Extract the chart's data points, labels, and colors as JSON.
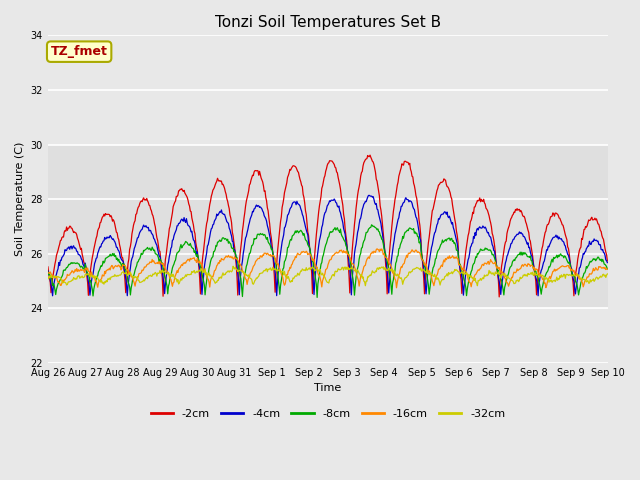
{
  "title": "Tonzi Soil Temperatures Set B",
  "xlabel": "Time",
  "ylabel": "Soil Temperature (C)",
  "ylim": [
    22,
    34
  ],
  "xlim": [
    0,
    15
  ],
  "annotation": "TZ_fmet",
  "annotation_color": "#aa0000",
  "annotation_bg": "#ffffcc",
  "annotation_border": "#aaaa00",
  "fig_bg": "#e8e8e8",
  "plot_bg": "#e8e8e8",
  "grid_color": "#ffffff",
  "series": [
    {
      "label": "-2cm",
      "color": "#dd0000",
      "amp": 3.5,
      "phase_hr": 14,
      "base": 24.5,
      "amp_scale": [
        0.7,
        0.85,
        1.0,
        1.1,
        1.2,
        1.3,
        1.35,
        1.4,
        1.45,
        1.4,
        1.2,
        1.0,
        0.9,
        0.85,
        0.8
      ]
    },
    {
      "label": "-4cm",
      "color": "#0000cc",
      "amp": 2.5,
      "phase_hr": 15,
      "base": 24.5,
      "amp_scale": [
        0.7,
        0.85,
        1.0,
        1.1,
        1.2,
        1.3,
        1.35,
        1.4,
        1.45,
        1.4,
        1.2,
        1.0,
        0.9,
        0.85,
        0.8
      ]
    },
    {
      "label": "-8cm",
      "color": "#00aa00",
      "amp": 1.8,
      "phase_hr": 17,
      "base": 24.5,
      "amp_scale": [
        0.65,
        0.8,
        0.95,
        1.05,
        1.15,
        1.25,
        1.3,
        1.35,
        1.4,
        1.35,
        1.15,
        0.95,
        0.85,
        0.8,
        0.75
      ]
    },
    {
      "label": "-16cm",
      "color": "#ff8800",
      "amp": 1.0,
      "phase_hr": 20,
      "base": 24.8,
      "amp_scale": [
        0.6,
        0.75,
        0.9,
        1.0,
        1.1,
        1.2,
        1.25,
        1.3,
        1.35,
        1.3,
        1.1,
        0.9,
        0.8,
        0.75,
        0.7
      ]
    },
    {
      "label": "-32cm",
      "color": "#cccc00",
      "amp": 0.45,
      "phase_hr": 24,
      "base": 24.9,
      "amp_scale": [
        0.6,
        0.75,
        0.9,
        1.0,
        1.1,
        1.2,
        1.25,
        1.3,
        1.35,
        1.3,
        1.1,
        0.9,
        0.8,
        0.75,
        0.7
      ]
    }
  ],
  "xtick_positions": [
    0,
    1,
    2,
    3,
    4,
    5,
    6,
    7,
    8,
    9,
    10,
    11,
    12,
    13,
    14,
    15
  ],
  "xtick_labels": [
    "Aug 26",
    "Aug 27",
    "Aug 28",
    "Aug 29",
    "Aug 30",
    "Aug 31",
    "Sep 1",
    "Sep 2",
    "Sep 3",
    "Sep 4",
    "Sep 5",
    "Sep 6",
    "Sep 7",
    "Sep 8",
    "Sep 9",
    "Sep 10"
  ],
  "ytick_positions": [
    22,
    24,
    26,
    28,
    30,
    32,
    34
  ],
  "ytick_labels": [
    "22",
    "24",
    "26",
    "28",
    "30",
    "32",
    "34"
  ],
  "n_per_day": 48,
  "days": 15,
  "title_fontsize": 11,
  "axis_fontsize": 8,
  "tick_fontsize": 7,
  "legend_fontsize": 8
}
